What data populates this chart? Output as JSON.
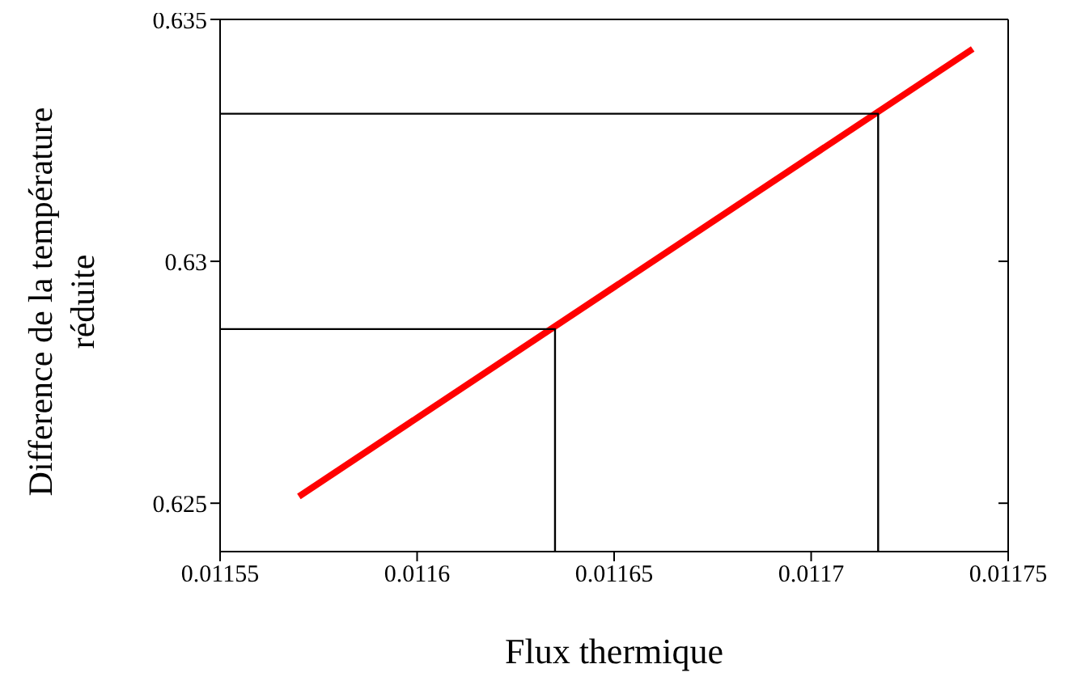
{
  "chart_data": {
    "type": "line",
    "xlabel": "Flux thermique",
    "ylabel": "Difference de la température réduite",
    "xlim": [
      0.01155,
      0.01175
    ],
    "xticks": [
      0.01155,
      0.0116,
      0.01165,
      0.0117,
      0.01175
    ],
    "ylim": [
      0.624,
      0.635
    ],
    "yticks": [
      0.625,
      0.63,
      0.635
    ],
    "marker": "none",
    "series": [
      {
        "color": "#ff0000",
        "x": [
          0.01157,
          0.011741
        ],
        "values": [
          0.62514,
          0.63439
        ]
      },
      {
        "color": "#000000",
        "x": [
          0.01155,
          0.011635,
          0.011635
        ],
        "values": [
          0.6286,
          0.6286,
          0.624
        ]
      },
      {
        "color": "#000000",
        "x": [
          0.01155,
          0.011717,
          0.011717
        ],
        "values": [
          0.63305,
          0.63305,
          0.624
        ]
      }
    ]
  }
}
